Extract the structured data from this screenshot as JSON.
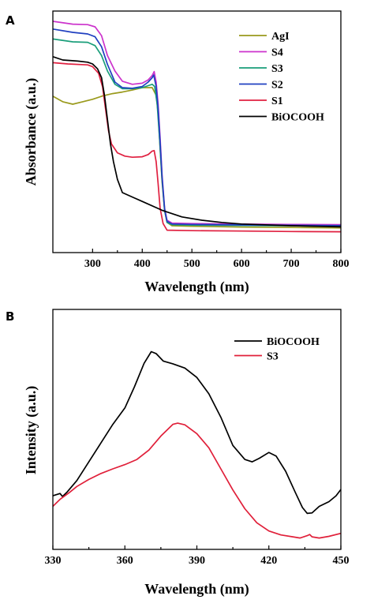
{
  "chart_data": [
    {
      "panel_label": "A",
      "type": "line",
      "xlabel": "Wavelength (nm)",
      "ylabel": "Absorbance (a.u.)",
      "xlim": [
        220,
        800
      ],
      "ylim": [
        0,
        1.0
      ],
      "xticks": [
        300,
        400,
        500,
        600,
        700,
        800
      ],
      "yticks_shown": false,
      "legend_position": "upper-right",
      "series": [
        {
          "name": "AgI",
          "color": "#9a9a1c",
          "points": [
            [
              220,
              0.636
            ],
            [
              240,
              0.611
            ],
            [
              260,
              0.6
            ],
            [
              280,
              0.611
            ],
            [
              300,
              0.622
            ],
            [
              320,
              0.637
            ],
            [
              340,
              0.648
            ],
            [
              360,
              0.655
            ],
            [
              380,
              0.664
            ],
            [
              400,
              0.675
            ],
            [
              410,
              0.675
            ],
            [
              420,
              0.675
            ],
            [
              428,
              0.64
            ],
            [
              432,
              0.56
            ],
            [
              436,
              0.4
            ],
            [
              440,
              0.25
            ],
            [
              445,
              0.12
            ],
            [
              450,
              0.065
            ],
            [
              460,
              0.05
            ],
            [
              500,
              0.048
            ],
            [
              600,
              0.044
            ],
            [
              700,
              0.042
            ],
            [
              800,
              0.04
            ]
          ]
        },
        {
          "name": "S4",
          "color": "#cc33cc",
          "points": [
            [
              220,
              0.975
            ],
            [
              260,
              0.962
            ],
            [
              290,
              0.96
            ],
            [
              305,
              0.95
            ],
            [
              318,
              0.91
            ],
            [
              330,
              0.82
            ],
            [
              345,
              0.75
            ],
            [
              360,
              0.704
            ],
            [
              380,
              0.69
            ],
            [
              400,
              0.695
            ],
            [
              412,
              0.71
            ],
            [
              420,
              0.73
            ],
            [
              424,
              0.748
            ],
            [
              428,
              0.7
            ],
            [
              432,
              0.6
            ],
            [
              436,
              0.45
            ],
            [
              440,
              0.28
            ],
            [
              445,
              0.13
            ],
            [
              450,
              0.075
            ],
            [
              460,
              0.062
            ],
            [
              500,
              0.06
            ],
            [
              600,
              0.058
            ],
            [
              700,
              0.056
            ],
            [
              800,
              0.055
            ]
          ]
        },
        {
          "name": "S3",
          "color": "#1a9e7a",
          "points": [
            [
              220,
              0.895
            ],
            [
              260,
              0.882
            ],
            [
              290,
              0.88
            ],
            [
              305,
              0.865
            ],
            [
              318,
              0.82
            ],
            [
              330,
              0.75
            ],
            [
              345,
              0.69
            ],
            [
              360,
              0.67
            ],
            [
              380,
              0.67
            ],
            [
              400,
              0.675
            ],
            [
              412,
              0.684
            ],
            [
              420,
              0.69
            ],
            [
              425,
              0.68
            ],
            [
              430,
              0.6
            ],
            [
              435,
              0.44
            ],
            [
              440,
              0.26
            ],
            [
              445,
              0.12
            ],
            [
              450,
              0.065
            ],
            [
              460,
              0.055
            ],
            [
              500,
              0.053
            ],
            [
              600,
              0.051
            ],
            [
              700,
              0.05
            ],
            [
              800,
              0.048
            ]
          ]
        },
        {
          "name": "S2",
          "color": "#2040c0",
          "points": [
            [
              220,
              0.94
            ],
            [
              260,
              0.925
            ],
            [
              290,
              0.918
            ],
            [
              305,
              0.905
            ],
            [
              318,
              0.86
            ],
            [
              330,
              0.78
            ],
            [
              345,
              0.7
            ],
            [
              360,
              0.675
            ],
            [
              380,
              0.672
            ],
            [
              400,
              0.68
            ],
            [
              412,
              0.7
            ],
            [
              420,
              0.72
            ],
            [
              423,
              0.732
            ],
            [
              428,
              0.68
            ],
            [
              432,
              0.58
            ],
            [
              436,
              0.43
            ],
            [
              440,
              0.27
            ],
            [
              445,
              0.125
            ],
            [
              450,
              0.07
            ],
            [
              460,
              0.058
            ],
            [
              500,
              0.056
            ],
            [
              600,
              0.054
            ],
            [
              700,
              0.052
            ],
            [
              800,
              0.051
            ]
          ]
        },
        {
          "name": "S1",
          "color": "#e02040",
          "points": [
            [
              220,
              0.788
            ],
            [
              250,
              0.782
            ],
            [
              290,
              0.778
            ],
            [
              300,
              0.77
            ],
            [
              312,
              0.74
            ],
            [
              320,
              0.68
            ],
            [
              326,
              0.58
            ],
            [
              332,
              0.48
            ],
            [
              338,
              0.42
            ],
            [
              350,
              0.38
            ],
            [
              365,
              0.365
            ],
            [
              380,
              0.36
            ],
            [
              400,
              0.362
            ],
            [
              412,
              0.372
            ],
            [
              420,
              0.388
            ],
            [
              424,
              0.39
            ],
            [
              428,
              0.34
            ],
            [
              432,
              0.24
            ],
            [
              436,
              0.13
            ],
            [
              442,
              0.06
            ],
            [
              450,
              0.03
            ],
            [
              500,
              0.028
            ],
            [
              600,
              0.026
            ],
            [
              700,
              0.024
            ],
            [
              800,
              0.023
            ]
          ]
        },
        {
          "name": "BiOCOOH",
          "color": "#000000",
          "points": [
            [
              220,
              0.815
            ],
            [
              240,
              0.8
            ],
            [
              270,
              0.795
            ],
            [
              290,
              0.79
            ],
            [
              300,
              0.782
            ],
            [
              310,
              0.76
            ],
            [
              318,
              0.72
            ],
            [
              324,
              0.64
            ],
            [
              330,
              0.53
            ],
            [
              336,
              0.42
            ],
            [
              342,
              0.34
            ],
            [
              350,
              0.26
            ],
            [
              360,
              0.2
            ],
            [
              380,
              0.18
            ],
            [
              400,
              0.16
            ],
            [
              440,
              0.12
            ],
            [
              480,
              0.09
            ],
            [
              520,
              0.075
            ],
            [
              560,
              0.065
            ],
            [
              600,
              0.058
            ],
            [
              700,
              0.05
            ],
            [
              800,
              0.045
            ]
          ]
        }
      ]
    },
    {
      "panel_label": "B",
      "type": "line",
      "xlabel": "Wavelength (nm)",
      "ylabel": "Intensity (a.u.)",
      "xlim": [
        330,
        450
      ],
      "ylim": [
        0,
        1.0
      ],
      "xticks": [
        330,
        360,
        390,
        420,
        450
      ],
      "yticks_shown": false,
      "legend_position": "upper-right",
      "series": [
        {
          "name": "BiOCOOH",
          "color": "#000000",
          "points": [
            [
              330,
              0.215
            ],
            [
              333,
              0.225
            ],
            [
              334,
              0.212
            ],
            [
              336,
              0.232
            ],
            [
              340,
              0.28
            ],
            [
              345,
              0.36
            ],
            [
              350,
              0.44
            ],
            [
              355,
              0.52
            ],
            [
              360,
              0.59
            ],
            [
              364,
              0.68
            ],
            [
              368,
              0.78
            ],
            [
              371,
              0.83
            ],
            [
              373,
              0.822
            ],
            [
              376,
              0.79
            ],
            [
              380,
              0.778
            ],
            [
              385,
              0.76
            ],
            [
              390,
              0.72
            ],
            [
              395,
              0.65
            ],
            [
              400,
              0.55
            ],
            [
              405,
              0.43
            ],
            [
              410,
              0.37
            ],
            [
              413,
              0.36
            ],
            [
              416,
              0.375
            ],
            [
              420,
              0.4
            ],
            [
              423,
              0.385
            ],
            [
              427,
              0.32
            ],
            [
              431,
              0.23
            ],
            [
              434,
              0.165
            ],
            [
              436,
              0.14
            ],
            [
              438,
              0.142
            ],
            [
              441,
              0.17
            ],
            [
              445,
              0.19
            ],
            [
              448,
              0.215
            ],
            [
              450,
              0.242
            ]
          ]
        },
        {
          "name": "S3",
          "color": "#e0203a",
          "points": [
            [
              330,
              0.17
            ],
            [
              333,
              0.2
            ],
            [
              337,
              0.23
            ],
            [
              340,
              0.255
            ],
            [
              345,
              0.285
            ],
            [
              350,
              0.31
            ],
            [
              355,
              0.33
            ],
            [
              360,
              0.348
            ],
            [
              365,
              0.37
            ],
            [
              370,
              0.41
            ],
            [
              375,
              0.47
            ],
            [
              380,
              0.52
            ],
            [
              382,
              0.525
            ],
            [
              385,
              0.518
            ],
            [
              390,
              0.48
            ],
            [
              395,
              0.42
            ],
            [
              400,
              0.33
            ],
            [
              405,
              0.24
            ],
            [
              410,
              0.16
            ],
            [
              415,
              0.1
            ],
            [
              420,
              0.065
            ],
            [
              425,
              0.048
            ],
            [
              430,
              0.04
            ],
            [
              433,
              0.035
            ],
            [
              436,
              0.045
            ],
            [
              437,
              0.05
            ],
            [
              438,
              0.04
            ],
            [
              441,
              0.035
            ],
            [
              445,
              0.042
            ],
            [
              450,
              0.055
            ]
          ]
        }
      ]
    }
  ]
}
